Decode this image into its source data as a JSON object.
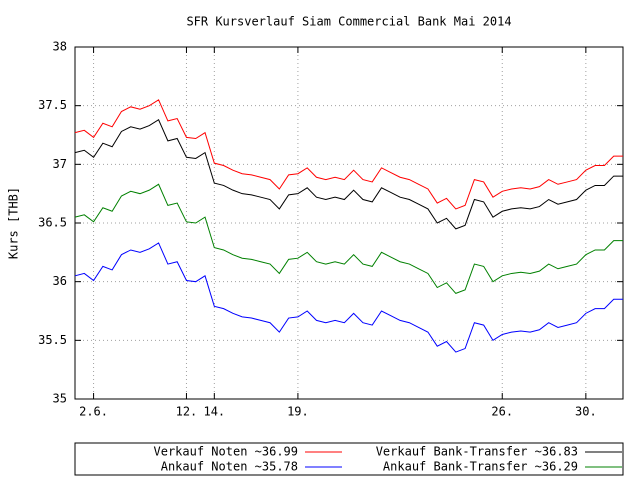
{
  "chart_data": {
    "type": "line",
    "title": "SFR Kursverlauf Siam Commercial Bank Mai 2014",
    "y_label": "Kurs [THB]",
    "x": [
      0,
      1,
      2,
      3,
      4,
      5,
      6,
      7,
      8,
      9,
      10,
      11,
      12,
      13,
      14,
      15,
      16,
      17,
      18,
      19,
      20,
      21,
      22,
      23,
      24,
      25,
      26,
      27,
      28,
      29,
      30,
      31,
      32,
      33,
      34,
      35,
      36,
      37,
      38,
      39,
      40,
      41,
      42,
      43,
      44,
      45,
      46,
      47,
      48,
      49,
      50,
      51,
      52,
      53,
      54,
      55,
      56,
      57,
      58,
      59
    ],
    "xlim": [
      0,
      59
    ],
    "xticks": [
      {
        "value": 2,
        "label": "2.6."
      },
      {
        "value": 12,
        "label": "12."
      },
      {
        "value": 15,
        "label": "14."
      },
      {
        "value": 24,
        "label": "19."
      },
      {
        "value": 46,
        "label": "26."
      },
      {
        "value": 55,
        "label": "30."
      }
    ],
    "ylim": [
      35,
      38
    ],
    "yticks": [
      35,
      35.5,
      36,
      36.5,
      37,
      37.5,
      38
    ],
    "grid": true,
    "series": [
      {
        "name": "Verkauf Noten ~36.99",
        "color": "#ff0000",
        "values": [
          37.27,
          37.29,
          37.23,
          37.35,
          37.32,
          37.45,
          37.49,
          37.47,
          37.5,
          37.55,
          37.37,
          37.39,
          37.23,
          37.22,
          37.27,
          37.01,
          36.99,
          36.95,
          36.92,
          36.91,
          36.89,
          36.87,
          36.79,
          36.91,
          36.92,
          36.97,
          36.89,
          36.87,
          36.89,
          36.87,
          36.95,
          36.87,
          36.85,
          36.97,
          36.93,
          36.89,
          36.87,
          36.83,
          36.79,
          36.67,
          36.71,
          36.62,
          36.65,
          36.87,
          36.85,
          36.72,
          36.77,
          36.79,
          36.8,
          36.79,
          36.81,
          36.87,
          36.83,
          36.85,
          36.87,
          36.95,
          36.99,
          36.99,
          37.07,
          37.07
        ]
      },
      {
        "name": "Verkauf Bank-Transfer ~36.83",
        "color": "#000000",
        "values": [
          37.1,
          37.12,
          37.06,
          37.18,
          37.15,
          37.28,
          37.32,
          37.3,
          37.33,
          37.38,
          37.2,
          37.22,
          37.06,
          37.05,
          37.1,
          36.84,
          36.82,
          36.78,
          36.75,
          36.74,
          36.72,
          36.7,
          36.62,
          36.74,
          36.75,
          36.8,
          36.72,
          36.7,
          36.72,
          36.7,
          36.78,
          36.7,
          36.68,
          36.8,
          36.76,
          36.72,
          36.7,
          36.66,
          36.62,
          36.5,
          36.54,
          36.45,
          36.48,
          36.7,
          36.68,
          36.55,
          36.6,
          36.62,
          36.63,
          36.62,
          36.64,
          36.7,
          36.66,
          36.68,
          36.7,
          36.78,
          36.82,
          36.82,
          36.9,
          36.9
        ]
      },
      {
        "name": "Ankauf Noten ~35.78",
        "color": "#0000ff",
        "values": [
          36.05,
          36.07,
          36.01,
          36.13,
          36.1,
          36.23,
          36.27,
          36.25,
          36.28,
          36.33,
          36.15,
          36.17,
          36.01,
          36.0,
          36.05,
          35.79,
          35.77,
          35.73,
          35.7,
          35.69,
          35.67,
          35.65,
          35.57,
          35.69,
          35.7,
          35.75,
          35.67,
          35.65,
          35.67,
          35.65,
          35.73,
          35.65,
          35.63,
          35.75,
          35.71,
          35.67,
          35.65,
          35.61,
          35.57,
          35.45,
          35.49,
          35.4,
          35.43,
          35.65,
          35.63,
          35.5,
          35.55,
          35.57,
          35.58,
          35.57,
          35.59,
          35.65,
          35.61,
          35.63,
          35.65,
          35.73,
          35.77,
          35.77,
          35.85,
          35.85
        ]
      },
      {
        "name": "Ankauf Bank-Transfer ~36.29",
        "color": "#008000",
        "values": [
          36.55,
          36.57,
          36.51,
          36.63,
          36.6,
          36.73,
          36.77,
          36.75,
          36.78,
          36.83,
          36.65,
          36.67,
          36.51,
          36.5,
          36.55,
          36.29,
          36.27,
          36.23,
          36.2,
          36.19,
          36.17,
          36.15,
          36.07,
          36.19,
          36.2,
          36.25,
          36.17,
          36.15,
          36.17,
          36.15,
          36.23,
          36.15,
          36.13,
          36.25,
          36.21,
          36.17,
          36.15,
          36.11,
          36.07,
          35.95,
          35.99,
          35.9,
          35.93,
          36.15,
          36.13,
          36.0,
          36.05,
          36.07,
          36.08,
          36.07,
          36.09,
          36.15,
          36.11,
          36.13,
          36.15,
          36.23,
          36.27,
          36.27,
          36.35,
          36.35
        ]
      }
    ]
  }
}
